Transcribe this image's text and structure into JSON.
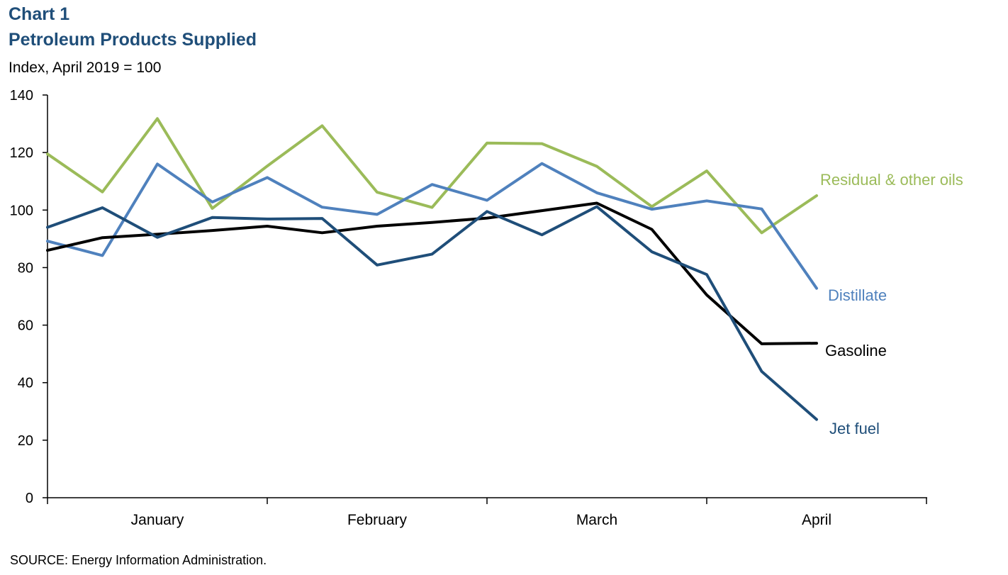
{
  "header": {
    "chart_number": "Chart 1",
    "title": "Petroleum Products Supplied",
    "subtitle": "Index, April 2019 = 100"
  },
  "footer": {
    "source": "SOURCE: Energy Information Administration."
  },
  "chart_data": {
    "type": "line",
    "title": "Petroleum Products Supplied",
    "ylabel": "Index, April 2019 = 100",
    "ylim": [
      0,
      140
    ],
    "yticks": [
      0,
      20,
      40,
      60,
      80,
      100,
      120,
      140
    ],
    "x_month_labels": [
      "January",
      "February",
      "March",
      "April"
    ],
    "points_per_month": 4,
    "grid": false,
    "legend": "inline labels at right end of each line",
    "series": [
      {
        "name": "Residual & other oils",
        "color": "#9bbb59",
        "values": [
          119.5,
          106.3,
          131.8,
          100.6,
          115.3,
          129.3,
          106.2,
          100.9,
          123.3,
          123.1,
          115.2,
          101.2,
          113.6,
          92.1,
          105.0
        ]
      },
      {
        "name": "Distillate",
        "color": "#4f81bd",
        "values": [
          89.2,
          84.2,
          116.0,
          102.8,
          111.3,
          101.0,
          98.5,
          108.9,
          103.4,
          116.2,
          106.0,
          100.3,
          103.2,
          100.4,
          72.8
        ]
      },
      {
        "name": "Gasoline",
        "color": "#000000",
        "values": [
          86.0,
          90.4,
          91.6,
          92.9,
          94.4,
          92.1,
          94.4,
          95.7,
          97.2,
          99.8,
          102.4,
          93.3,
          70.5,
          53.5,
          53.7
        ]
      },
      {
        "name": "Jet fuel",
        "color": "#1f4e79",
        "values": [
          94.0,
          100.8,
          90.5,
          97.4,
          96.9,
          97.1,
          80.9,
          84.7,
          99.5,
          91.4,
          101.2,
          85.5,
          77.6,
          43.9,
          27.2
        ]
      }
    ]
  }
}
